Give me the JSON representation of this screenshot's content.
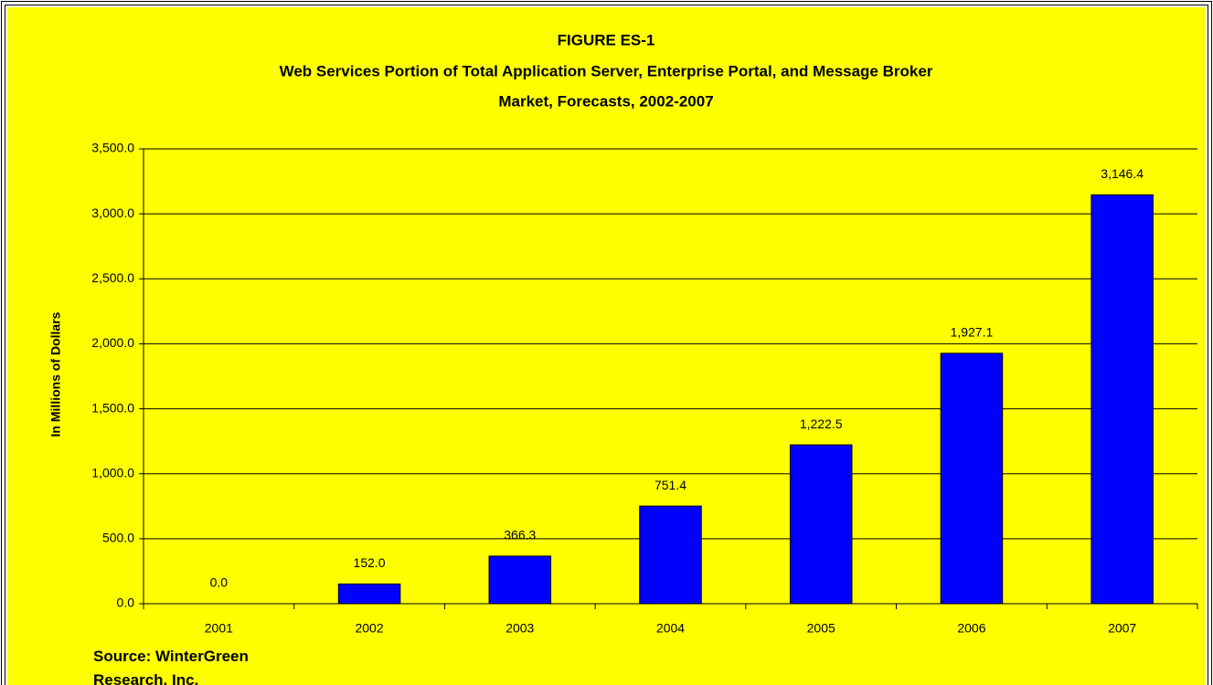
{
  "chart_data": {
    "type": "bar",
    "title": "FIGURE ES-1",
    "subtitle": [
      "Web Services Portion of Total Application Server, Enterprise Portal, and Message Broker",
      "Market, Forecasts,  2002-2007"
    ],
    "y_label": "In Millions of Dollars",
    "source": "Source: WinterGreen Research, Inc.",
    "categories": [
      "2001",
      "2002",
      "2003",
      "2004",
      "2005",
      "2006",
      "2007"
    ],
    "values": [
      0,
      152,
      366.3,
      751.4,
      1222.5,
      1927.1,
      3146.4
    ],
    "value_labels": [
      "0.0",
      "152.0",
      "366.3",
      "751.4",
      "1,222.5",
      "1,927.1",
      "3,146.4"
    ],
    "color": "#0000ff",
    "ylim": [
      0,
      3500
    ],
    "yticks": [
      {
        "value": 0,
        "label": "0.0"
      },
      {
        "value": 500,
        "label": "500.0"
      },
      {
        "value": 1000,
        "label": "1,000.0"
      },
      {
        "value": 1500,
        "label": "1,500.0"
      },
      {
        "value": 2000,
        "label": "2,000.0"
      },
      {
        "value": 2500,
        "label": "2,500.0"
      },
      {
        "value": 3000,
        "label": "3,000.0"
      },
      {
        "value": 3500,
        "label": "3,500.0"
      }
    ],
    "grid": true
  }
}
